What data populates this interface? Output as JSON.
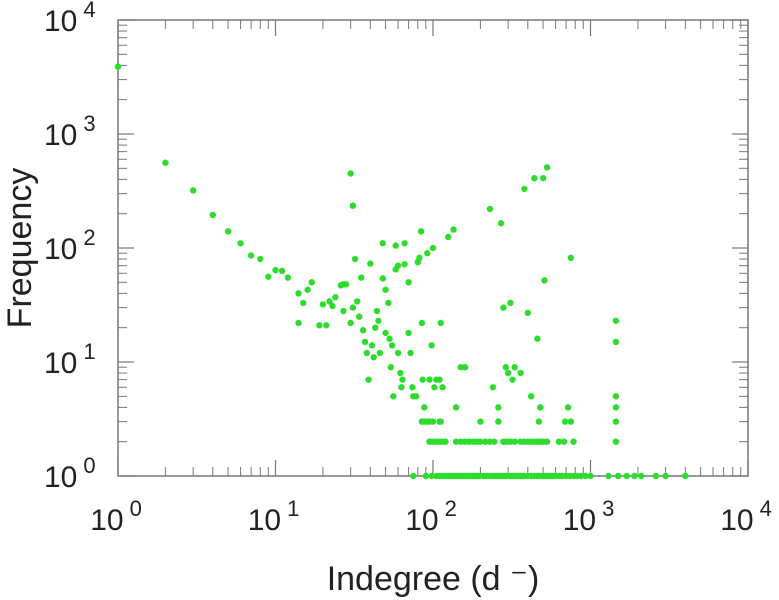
{
  "chart_data": {
    "type": "scatter",
    "title": "",
    "xlabel": "Indegree (d ⁻)",
    "ylabel": "Frequency",
    "x_scale": "log",
    "y_scale": "log",
    "xlim": [
      1,
      10000
    ],
    "ylim": [
      1,
      10000
    ],
    "grid": false,
    "legend": "none",
    "x_ticks": [
      {
        "base": "10",
        "exp": "0",
        "value": 1
      },
      {
        "base": "10",
        "exp": "1",
        "value": 10
      },
      {
        "base": "10",
        "exp": "2",
        "value": 100
      },
      {
        "base": "10",
        "exp": "3",
        "value": 1000
      },
      {
        "base": "10",
        "exp": "4",
        "value": 10000
      }
    ],
    "y_ticks": [
      {
        "base": "10",
        "exp": "0",
        "value": 1
      },
      {
        "base": "10",
        "exp": "1",
        "value": 10
      },
      {
        "base": "10",
        "exp": "2",
        "value": 100
      },
      {
        "base": "10",
        "exp": "3",
        "value": 1000
      },
      {
        "base": "10",
        "exp": "4",
        "value": 10000
      }
    ],
    "marker_color": "#2ddc2d",
    "axis_color": "#777777",
    "series": [
      {
        "points": [
          [
            1,
            3900
          ],
          [
            2,
            560
          ],
          [
            3,
            320
          ],
          [
            4,
            195
          ],
          [
            5,
            140
          ],
          [
            6,
            110
          ],
          [
            7,
            86
          ],
          [
            8,
            80
          ],
          [
            9,
            56
          ],
          [
            10,
            64
          ],
          [
            11,
            63
          ],
          [
            12,
            55
          ],
          [
            14,
            40
          ],
          [
            15,
            33
          ],
          [
            17,
            50
          ],
          [
            16,
            43
          ],
          [
            14,
            22
          ],
          [
            19,
            21
          ],
          [
            20,
            32
          ],
          [
            21,
            21
          ],
          [
            22,
            34
          ],
          [
            23,
            31
          ],
          [
            24,
            37
          ],
          [
            26,
            47
          ],
          [
            27,
            48
          ],
          [
            28,
            48
          ],
          [
            27,
            28
          ],
          [
            30,
            22
          ],
          [
            31,
            30
          ],
          [
            30,
            450
          ],
          [
            31,
            235
          ],
          [
            32,
            80
          ],
          [
            35,
            55
          ],
          [
            33,
            34
          ],
          [
            34,
            25
          ],
          [
            36,
            19
          ],
          [
            37,
            15
          ],
          [
            38,
            12
          ],
          [
            39,
            7
          ],
          [
            40,
            73
          ],
          [
            41,
            14
          ],
          [
            42,
            11
          ],
          [
            43,
            20
          ],
          [
            44,
            28
          ],
          [
            45,
            23
          ],
          [
            46,
            12
          ],
          [
            48,
            110
          ],
          [
            48,
            54
          ],
          [
            50,
            18
          ],
          [
            50,
            43
          ],
          [
            52,
            33
          ],
          [
            53,
            16
          ],
          [
            54,
            9
          ],
          [
            55,
            14
          ],
          [
            56,
            5
          ],
          [
            58,
            105
          ],
          [
            58,
            65
          ],
          [
            60,
            70
          ],
          [
            60,
            12
          ],
          [
            62,
            8
          ],
          [
            63,
            6
          ],
          [
            64,
            7
          ],
          [
            66,
            110
          ],
          [
            66,
            72
          ],
          [
            70,
            50
          ],
          [
            70,
            18
          ],
          [
            72,
            12
          ],
          [
            74,
            6
          ],
          [
            75,
            5
          ],
          [
            78,
            5
          ],
          [
            80,
            75
          ],
          [
            82,
            82
          ],
          [
            84,
            140
          ],
          [
            85,
            22
          ],
          [
            86,
            7
          ],
          [
            88,
            4
          ],
          [
            92,
            90
          ],
          [
            95,
            7
          ],
          [
            98,
            14
          ],
          [
            100,
            100
          ],
          [
            102,
            6
          ],
          [
            105,
            7
          ],
          [
            110,
            7
          ],
          [
            112,
            22
          ],
          [
            115,
            6
          ],
          [
            125,
            125
          ],
          [
            135,
            145
          ],
          [
            140,
            4
          ],
          [
            150,
            9
          ],
          [
            160,
            9
          ],
          [
            230,
            220
          ],
          [
            240,
            6
          ],
          [
            260,
            4
          ],
          [
            270,
            165
          ],
          [
            280,
            30
          ],
          [
            290,
            9
          ],
          [
            300,
            8
          ],
          [
            310,
            33
          ],
          [
            320,
            7
          ],
          [
            330,
            9
          ],
          [
            360,
            8
          ],
          [
            380,
            330
          ],
          [
            400,
            27
          ],
          [
            420,
            5
          ],
          [
            440,
            410
          ],
          [
            460,
            16
          ],
          [
            480,
            4
          ],
          [
            500,
            410
          ],
          [
            510,
            52
          ],
          [
            530,
            510
          ],
          [
            720,
            4
          ],
          [
            750,
            82
          ],
          [
            1450,
            23
          ],
          [
            1450,
            15
          ],
          [
            1450,
            5
          ],
          [
            1450,
            4
          ],
          [
            85,
            3
          ],
          [
            88,
            3
          ],
          [
            92,
            3
          ],
          [
            95,
            3
          ],
          [
            100,
            3
          ],
          [
            110,
            3
          ],
          [
            112,
            3
          ],
          [
            200,
            3
          ],
          [
            260,
            3
          ],
          [
            470,
            3
          ],
          [
            690,
            3
          ],
          [
            750,
            3
          ],
          [
            1450,
            3
          ],
          [
            95,
            2
          ],
          [
            100,
            2
          ],
          [
            105,
            2
          ],
          [
            110,
            2
          ],
          [
            115,
            2
          ],
          [
            120,
            2
          ],
          [
            140,
            2
          ],
          [
            150,
            2
          ],
          [
            160,
            2
          ],
          [
            170,
            2
          ],
          [
            180,
            2
          ],
          [
            190,
            2
          ],
          [
            200,
            2
          ],
          [
            215,
            2
          ],
          [
            230,
            2
          ],
          [
            245,
            2
          ],
          [
            280,
            2
          ],
          [
            295,
            2
          ],
          [
            310,
            2
          ],
          [
            330,
            2
          ],
          [
            360,
            2
          ],
          [
            380,
            2
          ],
          [
            400,
            2
          ],
          [
            420,
            2
          ],
          [
            440,
            2
          ],
          [
            460,
            2
          ],
          [
            480,
            2
          ],
          [
            500,
            2
          ],
          [
            530,
            2
          ],
          [
            630,
            2
          ],
          [
            680,
            2
          ],
          [
            780,
            2
          ],
          [
            1450,
            2
          ],
          [
            75,
            1
          ],
          [
            90,
            1
          ],
          [
            98,
            1
          ],
          [
            105,
            1
          ],
          [
            110,
            1
          ],
          [
            115,
            1
          ],
          [
            120,
            1
          ],
          [
            125,
            1
          ],
          [
            130,
            1
          ],
          [
            135,
            1
          ],
          [
            140,
            1
          ],
          [
            145,
            1
          ],
          [
            150,
            1
          ],
          [
            155,
            1
          ],
          [
            160,
            1
          ],
          [
            165,
            1
          ],
          [
            170,
            1
          ],
          [
            175,
            1
          ],
          [
            180,
            1
          ],
          [
            185,
            1
          ],
          [
            190,
            1
          ],
          [
            195,
            1
          ],
          [
            200,
            1
          ],
          [
            210,
            1
          ],
          [
            220,
            1
          ],
          [
            230,
            1
          ],
          [
            240,
            1
          ],
          [
            250,
            1
          ],
          [
            260,
            1
          ],
          [
            270,
            1
          ],
          [
            280,
            1
          ],
          [
            290,
            1
          ],
          [
            300,
            1
          ],
          [
            310,
            1
          ],
          [
            320,
            1
          ],
          [
            330,
            1
          ],
          [
            340,
            1
          ],
          [
            350,
            1
          ],
          [
            360,
            1
          ],
          [
            370,
            1
          ],
          [
            380,
            1
          ],
          [
            400,
            1
          ],
          [
            420,
            1
          ],
          [
            440,
            1
          ],
          [
            460,
            1
          ],
          [
            480,
            1
          ],
          [
            500,
            1
          ],
          [
            520,
            1
          ],
          [
            540,
            1
          ],
          [
            560,
            1
          ],
          [
            580,
            1
          ],
          [
            600,
            1
          ],
          [
            630,
            1
          ],
          [
            660,
            1
          ],
          [
            700,
            1
          ],
          [
            740,
            1
          ],
          [
            780,
            1
          ],
          [
            820,
            1
          ],
          [
            870,
            1
          ],
          [
            930,
            1
          ],
          [
            1000,
            1
          ],
          [
            1300,
            1
          ],
          [
            1500,
            1
          ],
          [
            1700,
            1
          ],
          [
            1900,
            1
          ],
          [
            2100,
            1
          ],
          [
            2600,
            1
          ],
          [
            3000,
            1
          ],
          [
            4000,
            1
          ]
        ]
      }
    ]
  }
}
